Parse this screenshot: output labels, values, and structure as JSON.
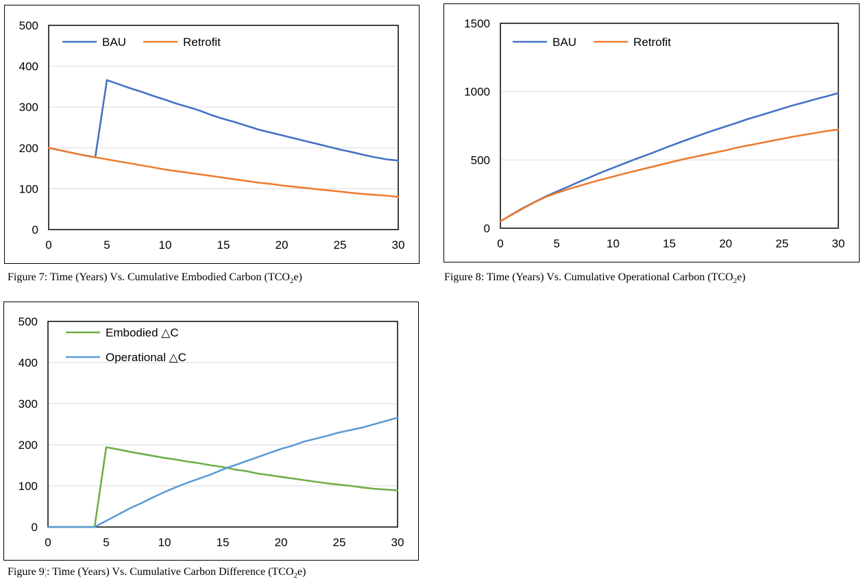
{
  "chart_data": [
    {
      "id": "fig7",
      "type": "line",
      "x": [
        0,
        1,
        2,
        3,
        4,
        5,
        6,
        7,
        8,
        9,
        10,
        11,
        12,
        13,
        14,
        15,
        16,
        17,
        18,
        19,
        20,
        21,
        22,
        23,
        24,
        25,
        26,
        27,
        28,
        29,
        30
      ],
      "xlim": [
        0,
        30
      ],
      "xticks": [
        0,
        5,
        10,
        15,
        20,
        25,
        30
      ],
      "ylim": [
        0,
        500
      ],
      "yticks": [
        0,
        100,
        200,
        300,
        400,
        500
      ],
      "grid": true,
      "legend": "top-left",
      "series": [
        {
          "name": "BAU",
          "color": "#4472C4",
          "values": [
            200,
            194,
            188,
            182,
            177,
            366,
            356,
            346,
            337,
            327,
            318,
            308,
            300,
            291,
            280,
            271,
            263,
            254,
            245,
            238,
            231,
            224,
            217,
            210,
            203,
            196,
            190,
            183,
            177,
            172,
            169
          ]
        },
        {
          "name": "Retrofit",
          "color": "#ED7D31",
          "values": [
            200,
            194,
            188,
            182,
            177,
            172,
            167,
            162,
            157,
            152,
            147,
            143,
            139,
            135,
            131,
            127,
            123,
            119,
            115,
            112,
            108,
            105,
            102,
            99,
            96,
            93,
            90,
            87,
            85,
            83,
            80
          ]
        }
      ]
    },
    {
      "id": "fig8",
      "type": "line",
      "x": [
        0,
        1,
        2,
        3,
        4,
        5,
        6,
        7,
        8,
        9,
        10,
        11,
        12,
        13,
        14,
        15,
        16,
        17,
        18,
        19,
        20,
        21,
        22,
        23,
        24,
        25,
        26,
        27,
        28,
        29,
        30
      ],
      "xlim": [
        0,
        30
      ],
      "xticks": [
        0,
        5,
        10,
        15,
        20,
        25,
        30
      ],
      "ylim": [
        0,
        1500
      ],
      "yticks": [
        0,
        500,
        1000,
        1500
      ],
      "grid": true,
      "legend": "top-left",
      "series": [
        {
          "name": "BAU",
          "color": "#4472C4",
          "values": [
            50,
            100,
            148,
            190,
            232,
            268,
            303,
            340,
            375,
            410,
            442,
            474,
            506,
            536,
            568,
            600,
            630,
            660,
            690,
            718,
            745,
            772,
            800,
            824,
            850,
            875,
            900,
            922,
            945,
            966,
            990
          ]
        },
        {
          "name": "Retrofit",
          "color": "#ED7D31",
          "values": [
            50,
            98,
            144,
            188,
            228,
            258,
            285,
            310,
            334,
            356,
            378,
            400,
            420,
            440,
            460,
            480,
            500,
            518,
            536,
            553,
            570,
            590,
            606,
            622,
            638,
            654,
            670,
            684,
            698,
            712,
            722
          ]
        }
      ]
    },
    {
      "id": "fig9",
      "type": "line",
      "x": [
        0,
        1,
        2,
        3,
        4,
        5,
        6,
        7,
        8,
        9,
        10,
        11,
        12,
        13,
        14,
        15,
        16,
        17,
        18,
        19,
        20,
        21,
        22,
        23,
        24,
        25,
        26,
        27,
        28,
        29,
        30
      ],
      "xlim": [
        0,
        30
      ],
      "xticks": [
        0,
        5,
        10,
        15,
        20,
        25,
        30
      ],
      "ylim": [
        0,
        500
      ],
      "yticks": [
        0,
        100,
        200,
        300,
        400,
        500
      ],
      "grid": true,
      "legend": "top-left",
      "series": [
        {
          "name": "Embodied △C",
          "color": "#70AD47",
          "values": [
            0,
            0,
            0,
            0,
            0,
            194,
            189,
            183,
            178,
            173,
            168,
            164,
            159,
            155,
            150,
            146,
            140,
            136,
            130,
            126,
            122,
            118,
            114,
            110,
            106,
            103,
            100,
            96,
            93,
            91,
            89
          ]
        },
        {
          "name": "Operational △C",
          "color": "#5B9BD5",
          "values": [
            0,
            0,
            0,
            0,
            0,
            15,
            30,
            45,
            58,
            72,
            85,
            97,
            108,
            118,
            128,
            140,
            150,
            160,
            170,
            180,
            190,
            198,
            208,
            215,
            222,
            230,
            236,
            242,
            250,
            258,
            266
          ]
        }
      ]
    }
  ],
  "captions": {
    "fig7": {
      "text": "Figure 7: Time (Years) Vs. Cumulative Embodied Carbon (TCO",
      "sub": "2",
      "tail": "e)"
    },
    "fig8": {
      "text": "Figure 8: Time (Years) Vs. Cumulative Operational Carbon (TCO",
      "sub": "2",
      "tail": "e)"
    },
    "fig9": {
      "text": "Figure 9",
      "cursor": "¦",
      "text2": ": Time (Years) Vs. Cumulative Carbon Difference (TCO",
      "sub": "2",
      "tail": "e)"
    }
  }
}
